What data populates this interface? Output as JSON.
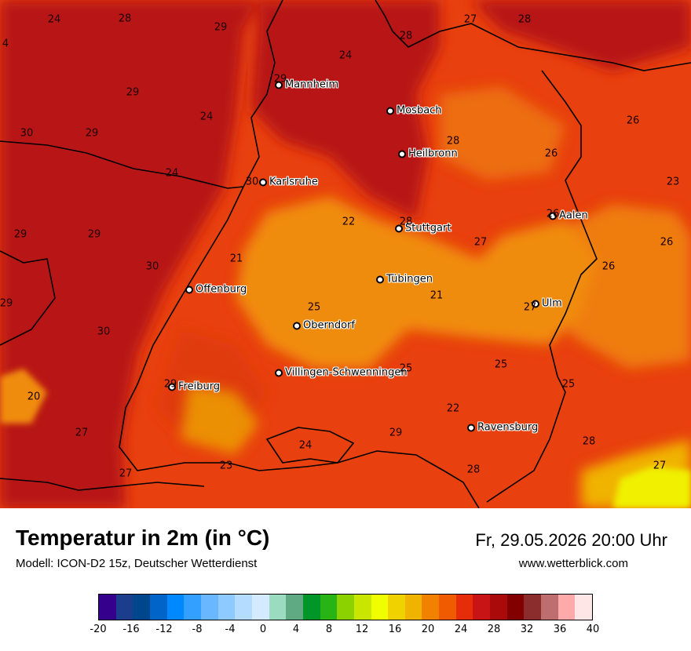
{
  "map": {
    "cities": [
      {
        "name": "Mannheim"
      },
      {
        "name": "Mosbach"
      },
      {
        "name": "Heilbronn"
      },
      {
        "name": "Karlsruhe"
      },
      {
        "name": "Stuttgart"
      },
      {
        "name": "Aalen"
      },
      {
        "name": "Offenburg"
      },
      {
        "name": "Tübingen"
      },
      {
        "name": "Ulm"
      },
      {
        "name": "Oberndorf"
      },
      {
        "name": "Villingen-Schwenningen"
      },
      {
        "name": "Freiburg"
      },
      {
        "name": "Ravensburg"
      }
    ],
    "temperature_labels": [
      "24",
      "28",
      "29",
      "27",
      "28",
      "4",
      "24",
      "28",
      "29",
      "29",
      "24",
      "30",
      "29",
      "26",
      "28",
      "26",
      "24",
      "30",
      "23",
      "29",
      "29",
      "22",
      "28",
      "26",
      "26",
      "21",
      "27",
      "30",
      "26",
      "21",
      "29",
      "25",
      "27",
      "30",
      "25",
      "25",
      "25",
      "20",
      "29",
      "22",
      "27",
      "29",
      "27",
      "24",
      "28",
      "23",
      "27",
      "28"
    ]
  },
  "header": {
    "title": "Temperatur in 2m (in °C)",
    "model": "Modell: ICON-D2 15z, Deutscher Wetterdienst",
    "datetime": "Fr, 29.05.2026 20:00 Uhr",
    "website": "www.wetterblick.com"
  },
  "colorbar": {
    "colors": [
      "#34008c",
      "#1b3d8c",
      "#00468c",
      "#0064c8",
      "#0088ff",
      "#33a0ff",
      "#69b8ff",
      "#8ecaff",
      "#b4dcff",
      "#d4eaff",
      "#9bdcc0",
      "#5faa82",
      "#009628",
      "#28b414",
      "#8cd200",
      "#c8e600",
      "#f0ff00",
      "#f0d200",
      "#f0b400",
      "#f08200",
      "#f05a00",
      "#e62d0a",
      "#c81414",
      "#aa0a0a",
      "#820000",
      "#8c2d2d",
      "#be6e6e",
      "#ffaaaa",
      "#ffe6e6"
    ],
    "ticks": [
      "-20",
      "-16",
      "-12",
      "-8",
      "-4",
      "0",
      "4",
      "8",
      "12",
      "16",
      "20",
      "24",
      "28",
      "32",
      "36",
      "40"
    ]
  }
}
